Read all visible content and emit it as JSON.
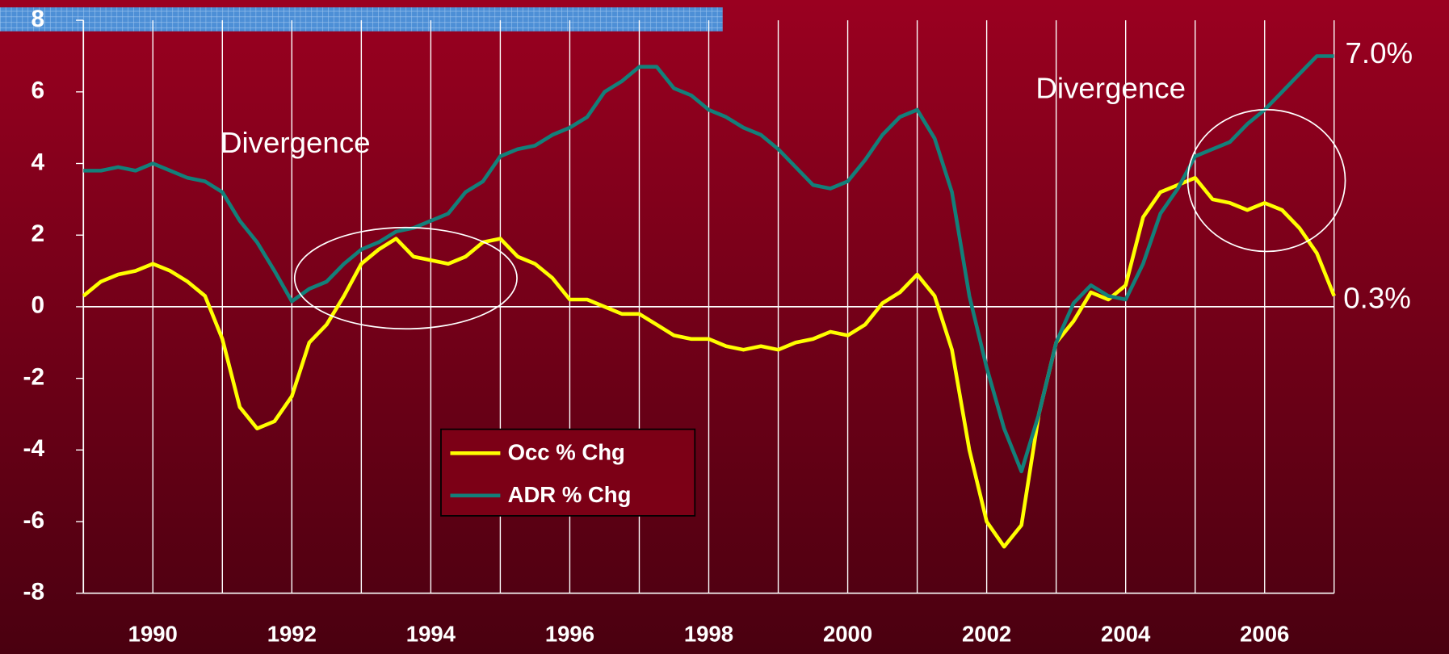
{
  "chart_data": {
    "type": "line",
    "annotations": [
      "Divergence",
      "Divergence",
      "7.0%",
      "0.3%"
    ],
    "x": [
      1989,
      1989.25,
      1989.5,
      1989.75,
      1990,
      1990.25,
      1990.5,
      1990.75,
      1991,
      1991.25,
      1991.5,
      1991.75,
      1992,
      1992.25,
      1992.5,
      1992.75,
      1993,
      1993.25,
      1993.5,
      1993.75,
      1994,
      1994.25,
      1994.5,
      1994.75,
      1995,
      1995.25,
      1995.5,
      1995.75,
      1996,
      1996.25,
      1996.5,
      1996.75,
      1997,
      1997.25,
      1997.5,
      1997.75,
      1998,
      1998.25,
      1998.5,
      1998.75,
      1999,
      1999.25,
      1999.5,
      1999.75,
      2000,
      2000.25,
      2000.5,
      2000.75,
      2001,
      2001.25,
      2001.5,
      2001.75,
      2002,
      2002.25,
      2002.5,
      2002.75,
      2003,
      2003.25,
      2003.5,
      2003.75,
      2004,
      2004.25,
      2004.5,
      2004.75,
      2005,
      2005.25,
      2005.5,
      2005.75,
      2006,
      2006.25,
      2006.5,
      2006.75,
      2007
    ],
    "series": [
      {
        "name": "Occ % Chg",
        "color": "#ffff00",
        "values": [
          0.3,
          0.7,
          0.9,
          1.0,
          1.2,
          1.0,
          0.7,
          0.3,
          -0.9,
          -2.8,
          -3.4,
          -3.2,
          -2.5,
          -1.0,
          -0.5,
          0.3,
          1.2,
          1.6,
          1.9,
          1.4,
          1.3,
          1.2,
          1.4,
          1.8,
          1.9,
          1.4,
          1.2,
          0.8,
          0.2,
          0.2,
          0.0,
          -0.2,
          -0.2,
          -0.5,
          -0.8,
          -0.9,
          -0.9,
          -1.1,
          -1.2,
          -1.1,
          -1.2,
          -1.0,
          -0.9,
          -0.7,
          -0.8,
          -0.5,
          0.1,
          0.4,
          0.9,
          0.3,
          -1.2,
          -4.0,
          -6.0,
          -6.7,
          -6.1,
          -3.0,
          -1.0,
          -0.4,
          0.4,
          0.2,
          0.6,
          2.5,
          3.2,
          3.4,
          3.6,
          3.0,
          2.9,
          2.7,
          2.9,
          2.7,
          2.2,
          1.5,
          0.3
        ]
      },
      {
        "name": "ADR % Chg",
        "color": "#13807a",
        "values": [
          3.8,
          3.8,
          3.9,
          3.8,
          4.0,
          3.8,
          3.6,
          3.5,
          3.2,
          2.4,
          1.8,
          1.0,
          0.15,
          0.5,
          0.7,
          1.2,
          1.6,
          1.8,
          2.1,
          2.2,
          2.4,
          2.6,
          3.2,
          3.5,
          4.2,
          4.4,
          4.5,
          4.8,
          5.0,
          5.3,
          6.0,
          6.3,
          6.7,
          6.7,
          6.1,
          5.9,
          5.5,
          5.3,
          5.0,
          4.8,
          4.4,
          3.9,
          3.4,
          3.3,
          3.5,
          4.1,
          4.8,
          5.3,
          5.5,
          4.7,
          3.2,
          0.3,
          -1.7,
          -3.4,
          -4.6,
          -3.0,
          -1.0,
          0.1,
          0.6,
          0.3,
          0.2,
          1.2,
          2.6,
          3.3,
          4.2,
          4.4,
          4.6,
          5.1,
          5.5,
          6.0,
          6.5,
          7.0,
          7.0
        ]
      }
    ],
    "xlim": [
      1989,
      2007
    ],
    "xticks": [
      1990,
      1992,
      1994,
      1996,
      1998,
      2000,
      2002,
      2004,
      2006
    ],
    "xgrid": [
      1990,
      1991,
      1992,
      1993,
      1994,
      1995,
      1996,
      1997,
      1998,
      1999,
      2000,
      2001,
      2002,
      2003,
      2004,
      2005,
      2006,
      2007
    ],
    "ylim": [
      -8,
      8
    ],
    "yticks": [
      -8,
      -6,
      -4,
      -2,
      0,
      2,
      4,
      6,
      8
    ]
  }
}
